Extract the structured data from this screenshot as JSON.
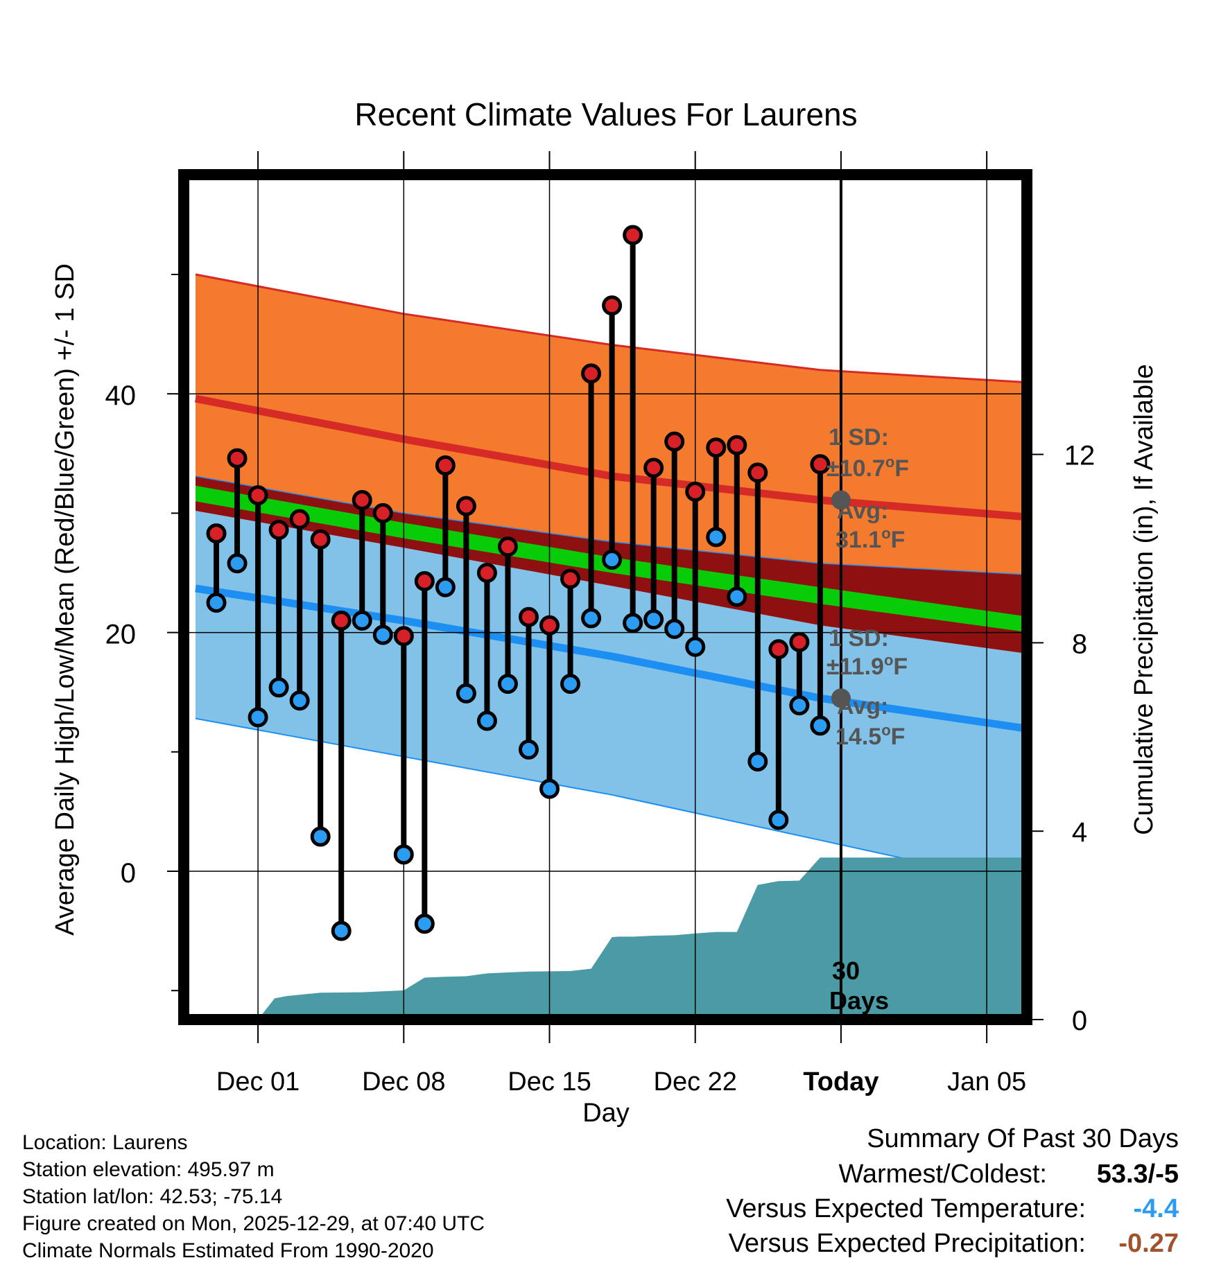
{
  "chart_data": {
    "type": "line",
    "title": "Recent Climate Values For Laurens",
    "xlabel": "Day",
    "ylabel": "Average Daily High/Low/Mean (Red/Blue/Green) +/- 1 SD",
    "y2label": "Cumulative Precipitation (in), If Available",
    "ylim": [
      -12.5,
      58.5
    ],
    "y2lim": [
      0,
      17.93
    ],
    "yticks": [
      0,
      20,
      40
    ],
    "yminor": [
      -10,
      10,
      30,
      50
    ],
    "y2ticks": [
      0,
      4,
      8,
      12
    ],
    "y2tick_labels": [
      "0",
      "4",
      "8",
      "12"
    ],
    "x_ticks": [
      {
        "day": 3,
        "label": "Dec 01",
        "bold": false
      },
      {
        "day": 10,
        "label": "Dec 08",
        "bold": false
      },
      {
        "day": 17,
        "label": "Dec 15",
        "bold": false
      },
      {
        "day": 24,
        "label": "Dec 22",
        "bold": false
      },
      {
        "day": 31,
        "label": "Today",
        "bold": true
      },
      {
        "day": 38,
        "label": "Jan 05",
        "bold": false
      }
    ],
    "xlim": [
      -0.2,
      40.7
    ],
    "today_day": 31,
    "normals": {
      "x": [
        0,
        10,
        20,
        30,
        40.5
      ],
      "high_upper": [
        50.0,
        46.7,
        44.1,
        42.0,
        40.9
      ],
      "high_avg": [
        39.6,
        36.2,
        33.1,
        31.1,
        29.6
      ],
      "high_lower": [
        33.1,
        30.0,
        27.6,
        25.8,
        24.8
      ],
      "mean_upper": [
        32.3,
        29.2,
        26.3,
        23.8,
        21.2
      ],
      "mean_lower": [
        31.0,
        27.9,
        25.0,
        22.4,
        19.9
      ],
      "low_upper": [
        30.2,
        27.1,
        23.9,
        20.6,
        18.1
      ],
      "low_avg": [
        23.7,
        21.0,
        18.0,
        14.5,
        11.8
      ],
      "low_lower": [
        12.8,
        9.6,
        6.4,
        2.6,
        -1.4
      ]
    },
    "series": [
      {
        "name": "Daily High",
        "color": "#d72027",
        "x": [
          1,
          2,
          3,
          4,
          5,
          6,
          7,
          8,
          9,
          10,
          11,
          12,
          13,
          14,
          15,
          16,
          17,
          18,
          19,
          20,
          21,
          22,
          23,
          24,
          25,
          26,
          27,
          28,
          29,
          30
        ],
        "values": [
          28.3,
          34.6,
          31.5,
          28.6,
          29.5,
          27.8,
          21.0,
          31.1,
          30.0,
          19.7,
          24.3,
          34.0,
          30.6,
          25.0,
          27.2,
          21.3,
          20.6,
          24.5,
          41.7,
          47.4,
          53.3,
          33.8,
          36.0,
          31.8,
          35.5,
          35.7,
          33.4,
          18.6,
          19.2,
          34.1
        ]
      },
      {
        "name": "Daily Low",
        "color": "#2b9cf2",
        "x": [
          1,
          2,
          3,
          4,
          5,
          6,
          7,
          8,
          9,
          10,
          11,
          12,
          13,
          14,
          15,
          16,
          17,
          18,
          19,
          20,
          21,
          22,
          23,
          24,
          25,
          26,
          27,
          28,
          29,
          30
        ],
        "values": [
          22.5,
          25.8,
          12.9,
          15.4,
          14.3,
          2.9,
          -5.0,
          21.0,
          19.8,
          1.4,
          -4.4,
          23.8,
          14.9,
          12.6,
          15.7,
          10.2,
          6.9,
          15.7,
          21.2,
          26.1,
          20.8,
          21.1,
          20.3,
          18.8,
          28.0,
          23.0,
          9.2,
          4.3,
          13.9,
          12.2
        ]
      },
      {
        "name": "Cumulative Precipitation",
        "color": "#4a9ba5",
        "x": [
          3,
          3.8,
          4.4,
          6,
          8,
          10,
          11,
          12,
          13,
          14,
          15,
          16,
          18,
          19,
          20,
          20.3,
          21,
          22,
          23,
          24,
          25,
          26,
          27,
          28,
          29,
          30,
          31,
          40.5
        ],
        "values": [
          0,
          0.45,
          0.5,
          0.57,
          0.58,
          0.62,
          0.89,
          0.91,
          0.92,
          0.98,
          1.0,
          1.02,
          1.03,
          1.08,
          1.75,
          1.76,
          1.76,
          1.78,
          1.79,
          1.83,
          1.86,
          1.86,
          2.86,
          2.94,
          2.95,
          3.44,
          3.44,
          3.44
        ]
      }
    ],
    "annotations": {
      "high_sd_title": "1 SD:",
      "high_sd_value": "±10.7",
      "high_avg_title": "Avg:",
      "high_avg_value": "31.1",
      "low_sd_title": "1 SD:",
      "low_sd_value": "±11.9",
      "low_avg_title": "Avg:",
      "low_avg_value": "14.5",
      "deg_sup": "o",
      "unit": "F",
      "days_number": "30",
      "days_word": "Days"
    },
    "colors": {
      "high_band": "#f47a2e",
      "high_line": "#d62a26",
      "mean_band": "#8f1010",
      "mean_line": "#09cc09",
      "low_band": "#82c2e8",
      "low_line": "#1e8ff2",
      "precip": "#4a9ba5",
      "annotation": "#555555"
    }
  },
  "footer": {
    "location": "Location: Laurens",
    "elevation": "Station elevation: 495.97 m",
    "latlon": "Station lat/lon: 42.53; -75.14",
    "created": "Figure created on Mon, 2025-12-29, at 07:40 UTC",
    "normals": "Climate Normals Estimated From 1990-2020"
  },
  "summary": {
    "title": "Summary Of Past 30 Days",
    "warmest_label": "Warmest/Coldest:",
    "warmest_value": "53.3/-5",
    "temp_label": "Versus Expected Temperature:",
    "temp_value": "-4.4",
    "precip_label": "Versus Expected Precipitation:",
    "precip_value": "-0.27",
    "temp_color": "#2b9cf2",
    "precip_color": "#a0522d"
  }
}
